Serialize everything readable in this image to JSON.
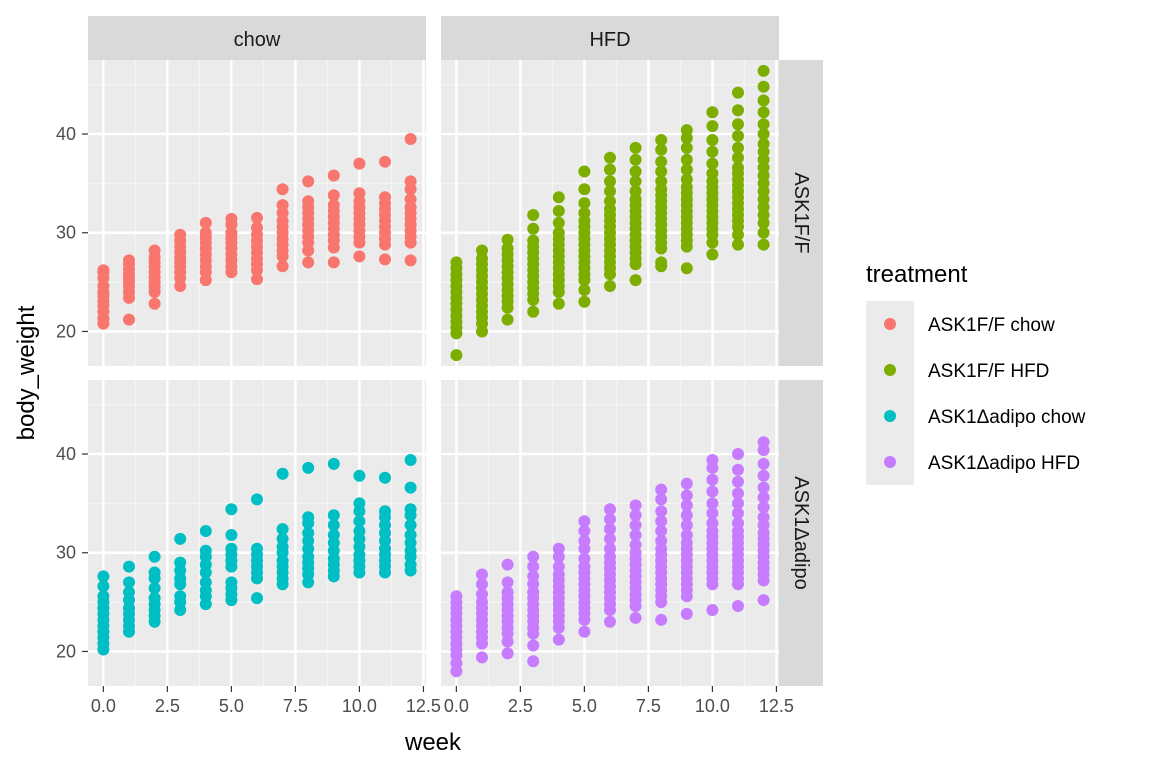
{
  "chart_data": {
    "type": "scatter",
    "xlabel": "week",
    "ylabel": "body_weight",
    "xlim": [
      -0.6,
      12.6
    ],
    "ylim": [
      16.5,
      47.5
    ],
    "x_ticks": [
      0,
      2.5,
      5,
      7.5,
      10,
      12.5
    ],
    "x_tick_labels": [
      "0.0",
      "2.5",
      "5.0",
      "7.5",
      "10.0",
      "12.5"
    ],
    "y_ticks": [
      20,
      30,
      40
    ],
    "y_tick_labels": [
      "20",
      "30",
      "40"
    ],
    "grid": true,
    "facet_columns": [
      "chow",
      "HFD"
    ],
    "facet_rows": [
      "ASK1F/F",
      "ASK1Δadipo"
    ],
    "legend": {
      "title": "treatment",
      "position": "right",
      "entries": [
        {
          "label": "ASK1F/F chow",
          "color": "#F8766D"
        },
        {
          "label": "ASK1F/F HFD",
          "color": "#7CAE00"
        },
        {
          "label": "ASK1Δadipo chow",
          "color": "#00BFC4"
        },
        {
          "label": "ASK1Δadipo HFD",
          "color": "#C77CFF"
        }
      ]
    },
    "series": [
      {
        "name": "ASK1F/F chow",
        "color": "#F8766D",
        "facet_column": "chow",
        "facet_row": "ASK1F/F",
        "points_by_week": [
          {
            "week": 0,
            "values": [
              20.8,
              21.3,
              22.0,
              22.6,
              23.1,
              23.6,
              24.0,
              24.6,
              25.4,
              26.0,
              26.2
            ]
          },
          {
            "week": 1,
            "values": [
              21.2,
              23.4,
              24.0,
              24.5,
              25.0,
              25.4,
              25.8,
              26.3,
              26.8,
              27.2
            ]
          },
          {
            "week": 2,
            "values": [
              22.8,
              24.0,
              24.5,
              25.0,
              25.5,
              26.0,
              26.5,
              27.0,
              27.5,
              28.2
            ]
          },
          {
            "week": 3,
            "values": [
              24.6,
              25.4,
              26.0,
              26.5,
              27.0,
              27.5,
              28.0,
              28.6,
              29.2,
              29.8
            ]
          },
          {
            "week": 4,
            "values": [
              25.2,
              26.0,
              26.6,
              27.2,
              27.8,
              28.4,
              29.0,
              29.5,
              30.0,
              31.0
            ]
          },
          {
            "week": 5,
            "values": [
              26.0,
              26.6,
              27.2,
              27.8,
              28.4,
              29.0,
              29.5,
              30.0,
              30.8,
              31.4
            ]
          },
          {
            "week": 6,
            "values": [
              25.3,
              26.2,
              26.8,
              27.4,
              28.0,
              28.6,
              29.2,
              29.8,
              30.5,
              31.5
            ]
          },
          {
            "week": 7,
            "values": [
              26.6,
              27.6,
              28.2,
              28.8,
              29.4,
              30.0,
              30.6,
              31.2,
              32.0,
              32.8,
              34.4
            ]
          },
          {
            "week": 8,
            "values": [
              27.0,
              28.2,
              29.0,
              29.6,
              30.2,
              30.8,
              31.4,
              32.0,
              32.6,
              33.2,
              35.2
            ]
          },
          {
            "week": 9,
            "values": [
              27.0,
              28.5,
              29.2,
              29.8,
              30.4,
              31.0,
              31.6,
              32.2,
              32.8,
              33.8,
              35.8
            ]
          },
          {
            "week": 10,
            "values": [
              27.6,
              29.0,
              29.6,
              30.2,
              30.8,
              31.4,
              32.0,
              32.6,
              33.2,
              34.0,
              37.0
            ]
          },
          {
            "week": 11,
            "values": [
              27.3,
              28.8,
              29.4,
              30.0,
              30.6,
              31.2,
              31.8,
              32.4,
              33.0,
              33.6,
              37.2
            ]
          },
          {
            "week": 12,
            "values": [
              27.2,
              29.0,
              29.6,
              30.2,
              30.8,
              31.4,
              32.0,
              32.6,
              33.4,
              34.4,
              35.2,
              39.5
            ]
          }
        ]
      },
      {
        "name": "ASK1F/F HFD",
        "color": "#7CAE00",
        "facet_column": "HFD",
        "facet_row": "ASK1F/F",
        "points_by_week": [
          {
            "week": 0,
            "values": [
              17.6,
              19.8,
              20.4,
              21.0,
              21.6,
              22.2,
              22.8,
              23.4,
              24.0,
              24.6,
              25.2,
              25.8,
              26.4,
              27.0
            ]
          },
          {
            "week": 1,
            "values": [
              20.0,
              20.8,
              21.4,
              22.0,
              22.6,
              23.2,
              23.8,
              24.4,
              25.0,
              25.6,
              26.2,
              26.8,
              27.4,
              28.2
            ]
          },
          {
            "week": 2,
            "values": [
              21.2,
              22.4,
              23.0,
              23.6,
              24.2,
              24.8,
              25.4,
              26.0,
              26.6,
              27.2,
              27.8,
              28.4,
              29.3
            ]
          },
          {
            "week": 3,
            "values": [
              22.0,
              23.2,
              23.8,
              24.4,
              25.0,
              25.6,
              26.2,
              26.8,
              27.4,
              28.0,
              28.6,
              29.2,
              30.4,
              31.8
            ]
          },
          {
            "week": 4,
            "values": [
              22.8,
              24.0,
              24.6,
              25.2,
              25.8,
              26.4,
              27.0,
              27.6,
              28.2,
              28.8,
              29.4,
              30.0,
              31.0,
              32.2,
              33.6
            ]
          },
          {
            "week": 5,
            "values": [
              23.0,
              24.2,
              25.2,
              25.8,
              26.4,
              27.0,
              27.6,
              28.2,
              28.8,
              29.4,
              30.0,
              30.6,
              31.2,
              32.0,
              33.0,
              34.4,
              36.2
            ]
          },
          {
            "week": 6,
            "values": [
              24.6,
              25.8,
              26.4,
              27.0,
              27.6,
              28.2,
              28.8,
              29.4,
              30.0,
              30.6,
              31.2,
              31.8,
              32.4,
              33.2,
              34.2,
              35.2,
              36.4,
              37.6
            ]
          },
          {
            "week": 7,
            "values": [
              25.2,
              26.8,
              27.4,
              28.0,
              28.6,
              29.2,
              29.8,
              30.4,
              31.0,
              31.6,
              32.2,
              32.8,
              33.4,
              34.2,
              35.2,
              36.2,
              37.4,
              38.6
            ]
          },
          {
            "week": 8,
            "values": [
              26.6,
              27.0,
              28.4,
              29.0,
              29.6,
              30.2,
              30.8,
              31.4,
              32.0,
              32.6,
              33.2,
              33.8,
              34.4,
              35.2,
              36.2,
              37.2,
              38.4,
              39.4
            ]
          },
          {
            "week": 9,
            "values": [
              26.4,
              28.6,
              29.2,
              29.8,
              30.4,
              31.0,
              31.6,
              32.2,
              32.8,
              33.4,
              34.0,
              34.6,
              35.4,
              36.4,
              37.4,
              38.6,
              39.6,
              40.4
            ]
          },
          {
            "week": 10,
            "values": [
              27.8,
              29.0,
              29.8,
              30.4,
              31.0,
              31.6,
              32.2,
              32.8,
              33.4,
              34.0,
              34.6,
              35.2,
              36.0,
              37.0,
              38.2,
              39.4,
              40.8,
              42.2
            ]
          },
          {
            "week": 11,
            "values": [
              28.8,
              29.8,
              30.6,
              31.2,
              31.8,
              32.4,
              33.0,
              33.6,
              34.2,
              34.8,
              35.4,
              36.0,
              36.6,
              37.6,
              38.6,
              39.8,
              41.0,
              42.4,
              44.2
            ]
          },
          {
            "week": 12,
            "values": [
              28.8,
              30.0,
              31.0,
              31.8,
              32.6,
              33.4,
              34.2,
              35.0,
              35.8,
              36.6,
              37.4,
              38.2,
              39.0,
              40.0,
              41.0,
              42.2,
              43.4,
              44.8,
              46.4
            ]
          }
        ]
      },
      {
        "name": "ASK1Δadipo chow",
        "color": "#00BFC4",
        "facet_column": "chow",
        "facet_row": "ASK1Δadipo",
        "points_by_week": [
          {
            "week": 0,
            "values": [
              20.2,
              20.8,
              21.4,
              22.0,
              22.6,
              23.2,
              23.8,
              24.4,
              25.0,
              25.6,
              26.6,
              27.6
            ]
          },
          {
            "week": 1,
            "values": [
              22.0,
              22.6,
              23.2,
              23.8,
              24.4,
              25.2,
              26.0,
              27.0,
              28.6
            ]
          },
          {
            "week": 2,
            "values": [
              23.0,
              23.6,
              24.2,
              24.8,
              25.4,
              26.4,
              27.4,
              28.0,
              29.6
            ]
          },
          {
            "week": 3,
            "values": [
              24.2,
              25.0,
              25.6,
              26.8,
              27.4,
              28.2,
              29.0,
              31.4
            ]
          },
          {
            "week": 4,
            "values": [
              24.8,
              25.6,
              26.2,
              27.0,
              28.0,
              28.8,
              29.6,
              30.2,
              32.2
            ]
          },
          {
            "week": 5,
            "values": [
              25.2,
              25.8,
              26.4,
              27.0,
              28.6,
              29.2,
              29.8,
              30.4,
              31.8,
              34.4
            ]
          },
          {
            "week": 6,
            "values": [
              25.4,
              27.4,
              28.0,
              28.6,
              29.2,
              29.8,
              30.4,
              35.4
            ]
          },
          {
            "week": 7,
            "values": [
              26.8,
              27.4,
              28.0,
              28.6,
              29.2,
              30.0,
              30.6,
              31.4,
              32.4,
              38.0
            ]
          },
          {
            "week": 8,
            "values": [
              27.0,
              27.8,
              28.4,
              29.0,
              29.6,
              30.4,
              31.2,
              32.0,
              33.0,
              33.6,
              38.6
            ]
          },
          {
            "week": 9,
            "values": [
              27.6,
              28.2,
              28.8,
              29.4,
              30.2,
              31.0,
              31.8,
              32.8,
              33.8,
              39.0
            ]
          },
          {
            "week": 10,
            "values": [
              28.0,
              28.6,
              29.2,
              29.8,
              30.6,
              31.4,
              32.2,
              33.2,
              34.2,
              35.0,
              37.8
            ]
          },
          {
            "week": 11,
            "values": [
              28.0,
              28.6,
              29.2,
              29.8,
              30.4,
              31.2,
              32.0,
              32.8,
              33.6,
              34.2,
              37.6
            ]
          },
          {
            "week": 12,
            "values": [
              28.2,
              28.8,
              29.6,
              30.2,
              31.0,
              31.8,
              32.8,
              33.8,
              34.4,
              36.6,
              39.4
            ]
          }
        ]
      },
      {
        "name": "ASK1Δadipo HFD",
        "color": "#C77CFF",
        "facet_column": "HFD",
        "facet_row": "ASK1Δadipo",
        "points_by_week": [
          {
            "week": 0,
            "values": [
              18.0,
              18.8,
              19.6,
              20.2,
              20.8,
              21.4,
              22.0,
              22.6,
              23.2,
              23.8,
              24.4,
              25.0,
              25.6
            ]
          },
          {
            "week": 1,
            "values": [
              19.4,
              20.8,
              21.4,
              22.0,
              22.6,
              23.2,
              23.8,
              24.4,
              25.0,
              25.8,
              26.8,
              27.8
            ]
          },
          {
            "week": 2,
            "values": [
              19.8,
              21.0,
              21.8,
              22.4,
              23.0,
              23.6,
              24.2,
              24.8,
              25.4,
              26.0,
              27.0,
              28.8
            ]
          },
          {
            "week": 3,
            "values": [
              19.0,
              20.6,
              21.8,
              22.4,
              23.0,
              23.6,
              24.2,
              24.8,
              25.4,
              26.0,
              26.8,
              27.6,
              28.6,
              29.6
            ]
          },
          {
            "week": 4,
            "values": [
              21.2,
              22.4,
              23.0,
              23.6,
              24.2,
              24.8,
              25.4,
              26.0,
              26.6,
              27.2,
              27.8,
              28.6,
              29.6,
              30.4
            ]
          },
          {
            "week": 5,
            "values": [
              22.0,
              23.2,
              23.8,
              24.4,
              25.0,
              25.6,
              26.2,
              26.8,
              27.4,
              28.0,
              28.6,
              29.4,
              30.4,
              31.2,
              32.2,
              33.2
            ]
          },
          {
            "week": 6,
            "values": [
              23.0,
              24.2,
              24.8,
              25.4,
              26.0,
              26.6,
              27.2,
              27.8,
              28.4,
              29.0,
              29.6,
              30.4,
              31.4,
              32.4,
              33.4,
              34.4
            ]
          },
          {
            "week": 7,
            "values": [
              23.4,
              24.6,
              25.2,
              25.8,
              26.4,
              27.0,
              27.6,
              28.2,
              28.8,
              29.4,
              30.0,
              30.8,
              31.8,
              32.8,
              33.8,
              34.8
            ]
          },
          {
            "week": 8,
            "values": [
              23.2,
              25.0,
              25.6,
              26.2,
              26.8,
              27.4,
              28.0,
              28.6,
              29.2,
              29.8,
              30.4,
              31.2,
              32.2,
              33.2,
              34.2,
              35.4,
              36.4
            ]
          },
          {
            "week": 9,
            "values": [
              23.8,
              25.6,
              26.2,
              26.8,
              27.4,
              28.0,
              28.6,
              29.2,
              29.8,
              30.4,
              31.0,
              31.8,
              32.8,
              33.8,
              34.8,
              35.8,
              37.0
            ]
          },
          {
            "week": 10,
            "values": [
              24.2,
              26.8,
              27.4,
              28.0,
              28.6,
              29.2,
              29.8,
              30.4,
              31.0,
              31.6,
              32.2,
              33.0,
              34.0,
              35.0,
              36.2,
              37.4,
              38.6,
              39.4
            ]
          },
          {
            "week": 11,
            "values": [
              24.6,
              26.8,
              27.4,
              28.0,
              28.6,
              29.2,
              29.8,
              30.4,
              31.0,
              31.6,
              32.2,
              33.0,
              34.0,
              35.0,
              36.0,
              37.2,
              38.4,
              40.0
            ]
          },
          {
            "week": 12,
            "values": [
              25.2,
              27.2,
              27.8,
              28.4,
              29.0,
              29.6,
              30.2,
              30.8,
              31.4,
              32.0,
              32.8,
              33.6,
              34.6,
              35.6,
              36.6,
              37.8,
              39.0,
              40.4,
              41.2
            ]
          }
        ]
      }
    ]
  }
}
